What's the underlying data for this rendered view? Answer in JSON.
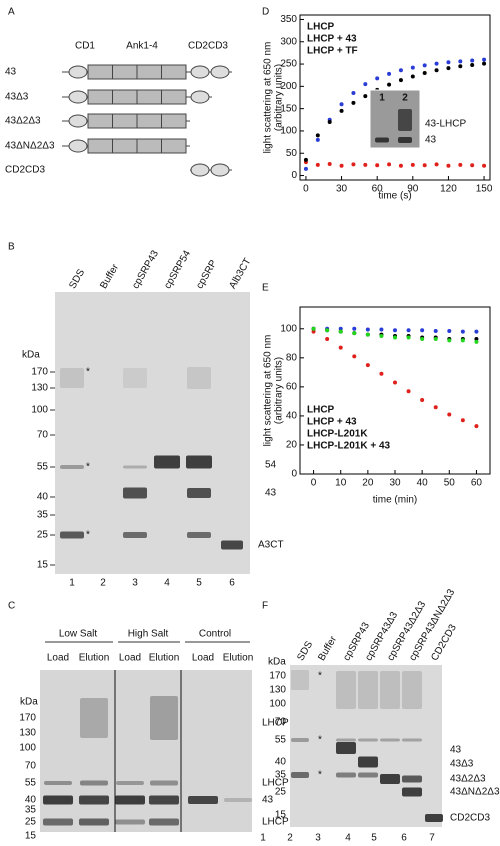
{
  "panel_labels": [
    "A",
    "B",
    "C",
    "D",
    "E",
    "F"
  ],
  "panel_a": {
    "columns": [
      "CD1",
      "Ank1-4",
      "CD2CD3"
    ],
    "rows": [
      "43",
      "43Δ3",
      "43Δ2Δ3",
      "43ΔNΔ2Δ3",
      "CD2CD3"
    ]
  },
  "panel_b": {
    "lanes": [
      "SDS",
      "Buffer",
      "cpSRP43",
      "cpSRP54",
      "cpSRP",
      "Alb3CT"
    ],
    "kda": "kDa",
    "markers": [
      "170",
      "130",
      "100",
      "70",
      "55",
      "40",
      "35",
      "25",
      "15"
    ],
    "asterisks": [
      "*",
      "*",
      "*"
    ],
    "bands": [
      "54",
      "43",
      "A3CT"
    ],
    "lane_numbers": [
      "1",
      "2",
      "3",
      "4",
      "5",
      "6"
    ]
  },
  "panel_c": {
    "groups": [
      "Low Salt",
      "High Salt",
      "Control"
    ],
    "lanes": [
      "Load",
      "Elution",
      "Load",
      "Elution",
      "Load",
      "Elution"
    ],
    "kda": "kDa",
    "markers": [
      "170",
      "130",
      "100",
      "70",
      "55",
      "40",
      "35",
      "25",
      "15"
    ],
    "bands": [
      "LHCP",
      "LHCP",
      "43",
      "LHCP"
    ]
  },
  "panel_f": {
    "lanes": [
      "SDS",
      "Buffer",
      "cpSRP43",
      "cpSRP43Δ3",
      "cpSRP43Δ2Δ3",
      "cpSRP43ΔNΔ2Δ3",
      "CD2CD3"
    ],
    "kda": "kDa",
    "markers": [
      "170",
      "130",
      "100",
      "70",
      "55",
      "40",
      "35",
      "25",
      "15"
    ],
    "asterisks": [
      "*",
      "*",
      "*"
    ],
    "bands": [
      "43",
      "43Δ3",
      "43Δ2Δ3",
      "43ΔNΔ2Δ3",
      "CD2CD3"
    ],
    "lane_numbers": [
      "1",
      "2",
      "3",
      "4",
      "5",
      "6",
      "7"
    ]
  },
  "chart_data": [
    {
      "type": "scatter",
      "xlabel": "time (s)",
      "ylabel": [
        "light scattering at 650 nm",
        "(arbitrary units)"
      ],
      "x": [
        0,
        10,
        20,
        30,
        40,
        50,
        60,
        70,
        80,
        90,
        100,
        110,
        120,
        130,
        140,
        150
      ],
      "xlim": [
        -5,
        155
      ],
      "xticks": [
        0,
        30,
        60,
        90,
        120,
        150
      ],
      "ylim": [
        -10,
        360
      ],
      "yticks": [
        0,
        50,
        100,
        150,
        200,
        250,
        300,
        350
      ],
      "legend": "upper left",
      "series": [
        {
          "name": "LHCP",
          "color": "#2a3cd6",
          "values": [
            15,
            80,
            125,
            160,
            185,
            205,
            218,
            228,
            236,
            242,
            247,
            251,
            254,
            256,
            258,
            260
          ]
        },
        {
          "name": "LHCP + 43",
          "color": "#e0201b",
          "values": [
            30,
            24,
            26,
            22,
            25,
            24,
            23,
            25,
            22,
            24,
            23,
            25,
            22,
            24,
            23,
            22
          ]
        },
        {
          "name": "LHCP + TF",
          "color": "#000000",
          "values": [
            35,
            90,
            120,
            145,
            163,
            178,
            192,
            204,
            214,
            222,
            230,
            236,
            241,
            245,
            248,
            251
          ]
        }
      ],
      "inset": {
        "lanes": [
          "1",
          "2"
        ],
        "labels": [
          "43-LHCP",
          "43"
        ]
      }
    },
    {
      "type": "scatter",
      "xlabel": "time (min)",
      "ylabel": [
        "light scattering at 650 nm",
        "(arbitrary units)"
      ],
      "x": [
        0,
        5,
        10,
        15,
        20,
        25,
        30,
        35,
        40,
        45,
        50,
        55,
        60
      ],
      "xlim": [
        -5,
        65
      ],
      "xticks": [
        0,
        10,
        20,
        30,
        40,
        50,
        60
      ],
      "ylim": [
        0,
        115
      ],
      "yticks": [
        0,
        20,
        40,
        60,
        80,
        100
      ],
      "legend": "lower left",
      "series": [
        {
          "name": "LHCP",
          "color": "#2a3cd6",
          "values": [
            100,
            100,
            100,
            100,
            99.5,
            99.5,
            99,
            99,
            99,
            98.5,
            98.5,
            98,
            98
          ]
        },
        {
          "name": "LHCP + 43",
          "color": "#e0201b",
          "values": [
            98,
            93,
            87,
            81,
            75,
            69,
            63,
            57,
            51,
            46,
            41,
            37,
            33
          ]
        },
        {
          "name": "LHCP-L201K",
          "color": "#000000",
          "values": [
            100,
            99,
            98,
            97,
            96,
            96,
            95,
            95,
            94,
            94,
            93,
            93,
            93
          ]
        },
        {
          "name": "LHCP-L201K + 43",
          "color": "#22d61c",
          "values": [
            100,
            99,
            98,
            97,
            96,
            95,
            94,
            94,
            93,
            93,
            92,
            92,
            91
          ]
        }
      ]
    }
  ]
}
